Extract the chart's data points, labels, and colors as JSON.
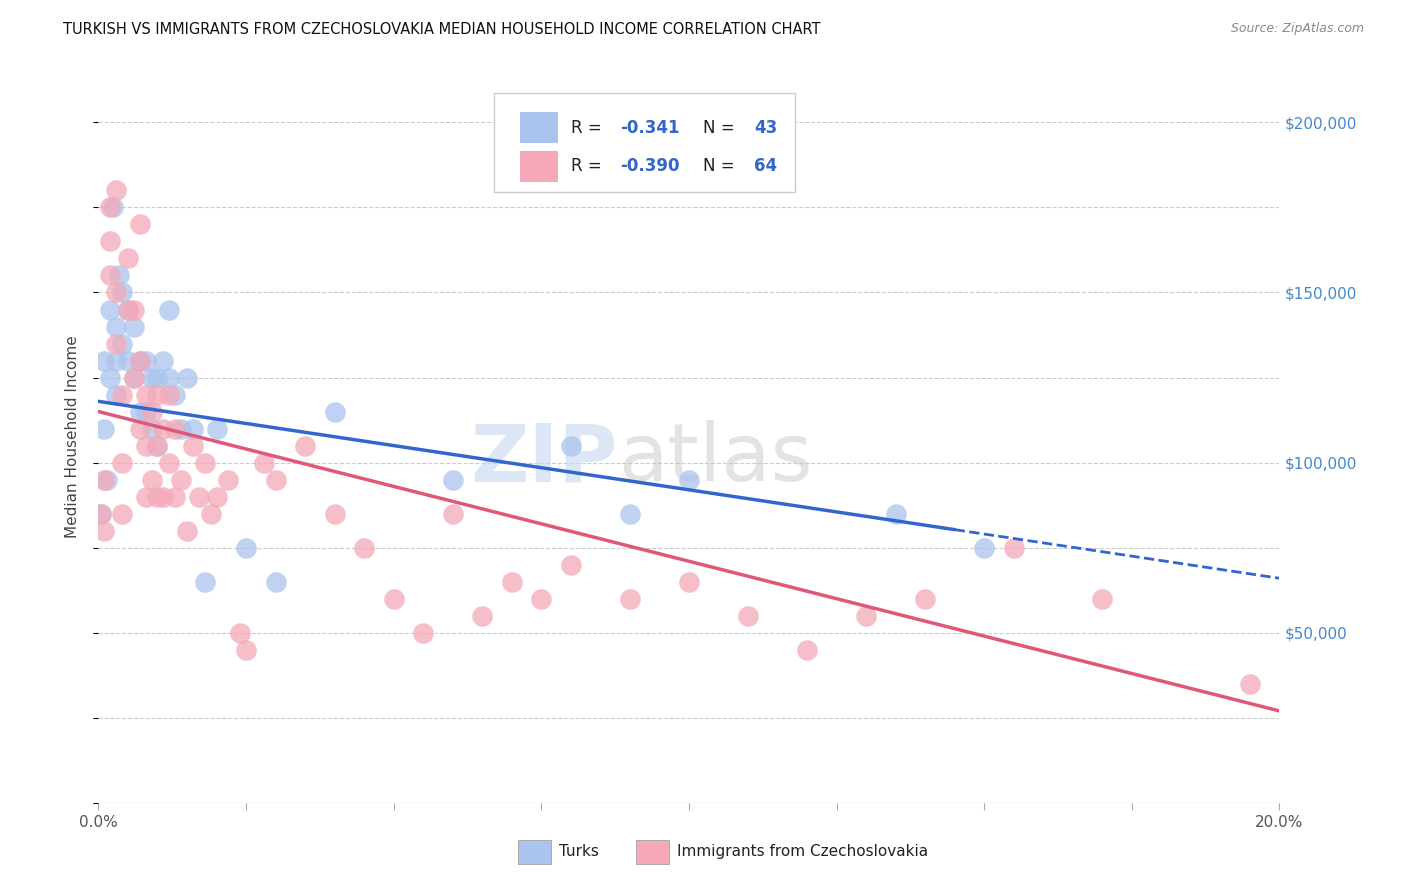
{
  "title": "TURKISH VS IMMIGRANTS FROM CZECHOSLOVAKIA MEDIAN HOUSEHOLD INCOME CORRELATION CHART",
  "source": "Source: ZipAtlas.com",
  "ylabel": "Median Household Income",
  "x_min": 0.0,
  "x_max": 0.2,
  "y_min": 0,
  "y_max": 215000,
  "x_ticks": [
    0.0,
    0.025,
    0.05,
    0.075,
    0.1,
    0.125,
    0.15,
    0.175,
    0.2
  ],
  "x_ticklabels": [
    "0.0%",
    "",
    "",
    "",
    "",
    "",
    "",
    "",
    "20.0%"
  ],
  "y_ticks": [
    0,
    50000,
    100000,
    150000,
    200000
  ],
  "y_ticklabels_right": [
    "",
    "$50,000",
    "$100,000",
    "$150,000",
    "$200,000"
  ],
  "watermark": "ZIPatlas",
  "turks_color": "#aac4ed",
  "czech_color": "#f4a8b8",
  "line_blue": "#3366cc",
  "line_pink": "#e05878",
  "background_color": "#ffffff",
  "turks_x": [
    0.0005,
    0.001,
    0.001,
    0.0015,
    0.002,
    0.002,
    0.0025,
    0.003,
    0.003,
    0.003,
    0.0035,
    0.004,
    0.004,
    0.005,
    0.005,
    0.006,
    0.006,
    0.007,
    0.007,
    0.008,
    0.008,
    0.009,
    0.009,
    0.01,
    0.01,
    0.011,
    0.012,
    0.012,
    0.013,
    0.014,
    0.015,
    0.016,
    0.018,
    0.02,
    0.025,
    0.03,
    0.04,
    0.06,
    0.08,
    0.09,
    0.1,
    0.135,
    0.15
  ],
  "turks_y": [
    85000,
    130000,
    110000,
    95000,
    145000,
    125000,
    175000,
    140000,
    130000,
    120000,
    155000,
    150000,
    135000,
    145000,
    130000,
    140000,
    125000,
    130000,
    115000,
    130000,
    115000,
    125000,
    110000,
    125000,
    105000,
    130000,
    145000,
    125000,
    120000,
    110000,
    125000,
    110000,
    65000,
    110000,
    75000,
    65000,
    115000,
    95000,
    105000,
    85000,
    95000,
    85000,
    75000
  ],
  "czech_x": [
    0.0005,
    0.001,
    0.001,
    0.002,
    0.002,
    0.002,
    0.003,
    0.003,
    0.003,
    0.004,
    0.004,
    0.004,
    0.005,
    0.005,
    0.006,
    0.006,
    0.007,
    0.007,
    0.007,
    0.008,
    0.008,
    0.008,
    0.009,
    0.009,
    0.01,
    0.01,
    0.01,
    0.011,
    0.011,
    0.012,
    0.012,
    0.013,
    0.013,
    0.014,
    0.015,
    0.016,
    0.017,
    0.018,
    0.019,
    0.02,
    0.022,
    0.024,
    0.025,
    0.028,
    0.03,
    0.035,
    0.04,
    0.045,
    0.05,
    0.055,
    0.06,
    0.065,
    0.07,
    0.075,
    0.08,
    0.09,
    0.1,
    0.11,
    0.12,
    0.13,
    0.14,
    0.155,
    0.17,
    0.195
  ],
  "czech_y": [
    85000,
    80000,
    95000,
    175000,
    165000,
    155000,
    150000,
    135000,
    180000,
    120000,
    100000,
    85000,
    160000,
    145000,
    145000,
    125000,
    170000,
    130000,
    110000,
    120000,
    105000,
    90000,
    115000,
    95000,
    120000,
    105000,
    90000,
    110000,
    90000,
    120000,
    100000,
    110000,
    90000,
    95000,
    80000,
    105000,
    90000,
    100000,
    85000,
    90000,
    95000,
    50000,
    45000,
    100000,
    95000,
    105000,
    85000,
    75000,
    60000,
    50000,
    85000,
    55000,
    65000,
    60000,
    70000,
    60000,
    65000,
    55000,
    45000,
    55000,
    60000,
    75000,
    60000,
    35000
  ],
  "line_blue_x_solid_end": 0.145,
  "line_blue_intercept": 118000,
  "line_blue_slope": -260000,
  "line_pink_intercept": 115000,
  "line_pink_slope": -440000
}
